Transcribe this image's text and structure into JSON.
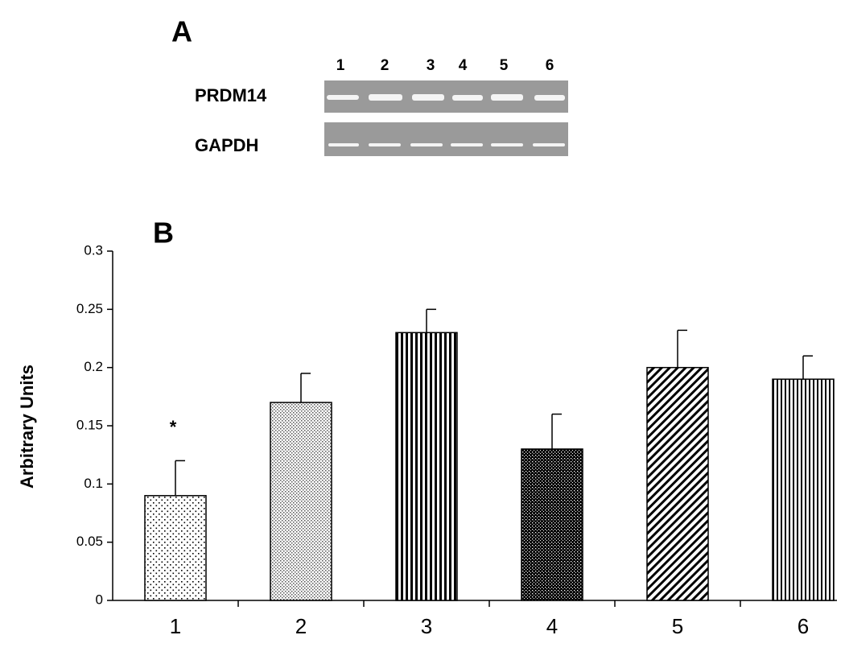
{
  "panel_a": {
    "label": "A",
    "lanes": [
      "1",
      "2",
      "3",
      "4",
      "5",
      "6"
    ],
    "rows": [
      "PRDM14",
      "GAPDH"
    ]
  },
  "chart_data": {
    "type": "bar",
    "title": "B",
    "ylabel": "Arbitrary Units",
    "categories": [
      "1",
      "2",
      "3",
      "4",
      "5",
      "6"
    ],
    "values": [
      0.09,
      0.17,
      0.23,
      0.13,
      0.2,
      0.19
    ],
    "errors": [
      0.03,
      0.025,
      0.02,
      0.03,
      0.032,
      0.02
    ],
    "annotation": "*",
    "color": "#000000",
    "ylim": [
      0,
      0.3
    ],
    "yticks": [
      0,
      0.05,
      0.1,
      0.15,
      0.2,
      0.25,
      0.3
    ]
  }
}
